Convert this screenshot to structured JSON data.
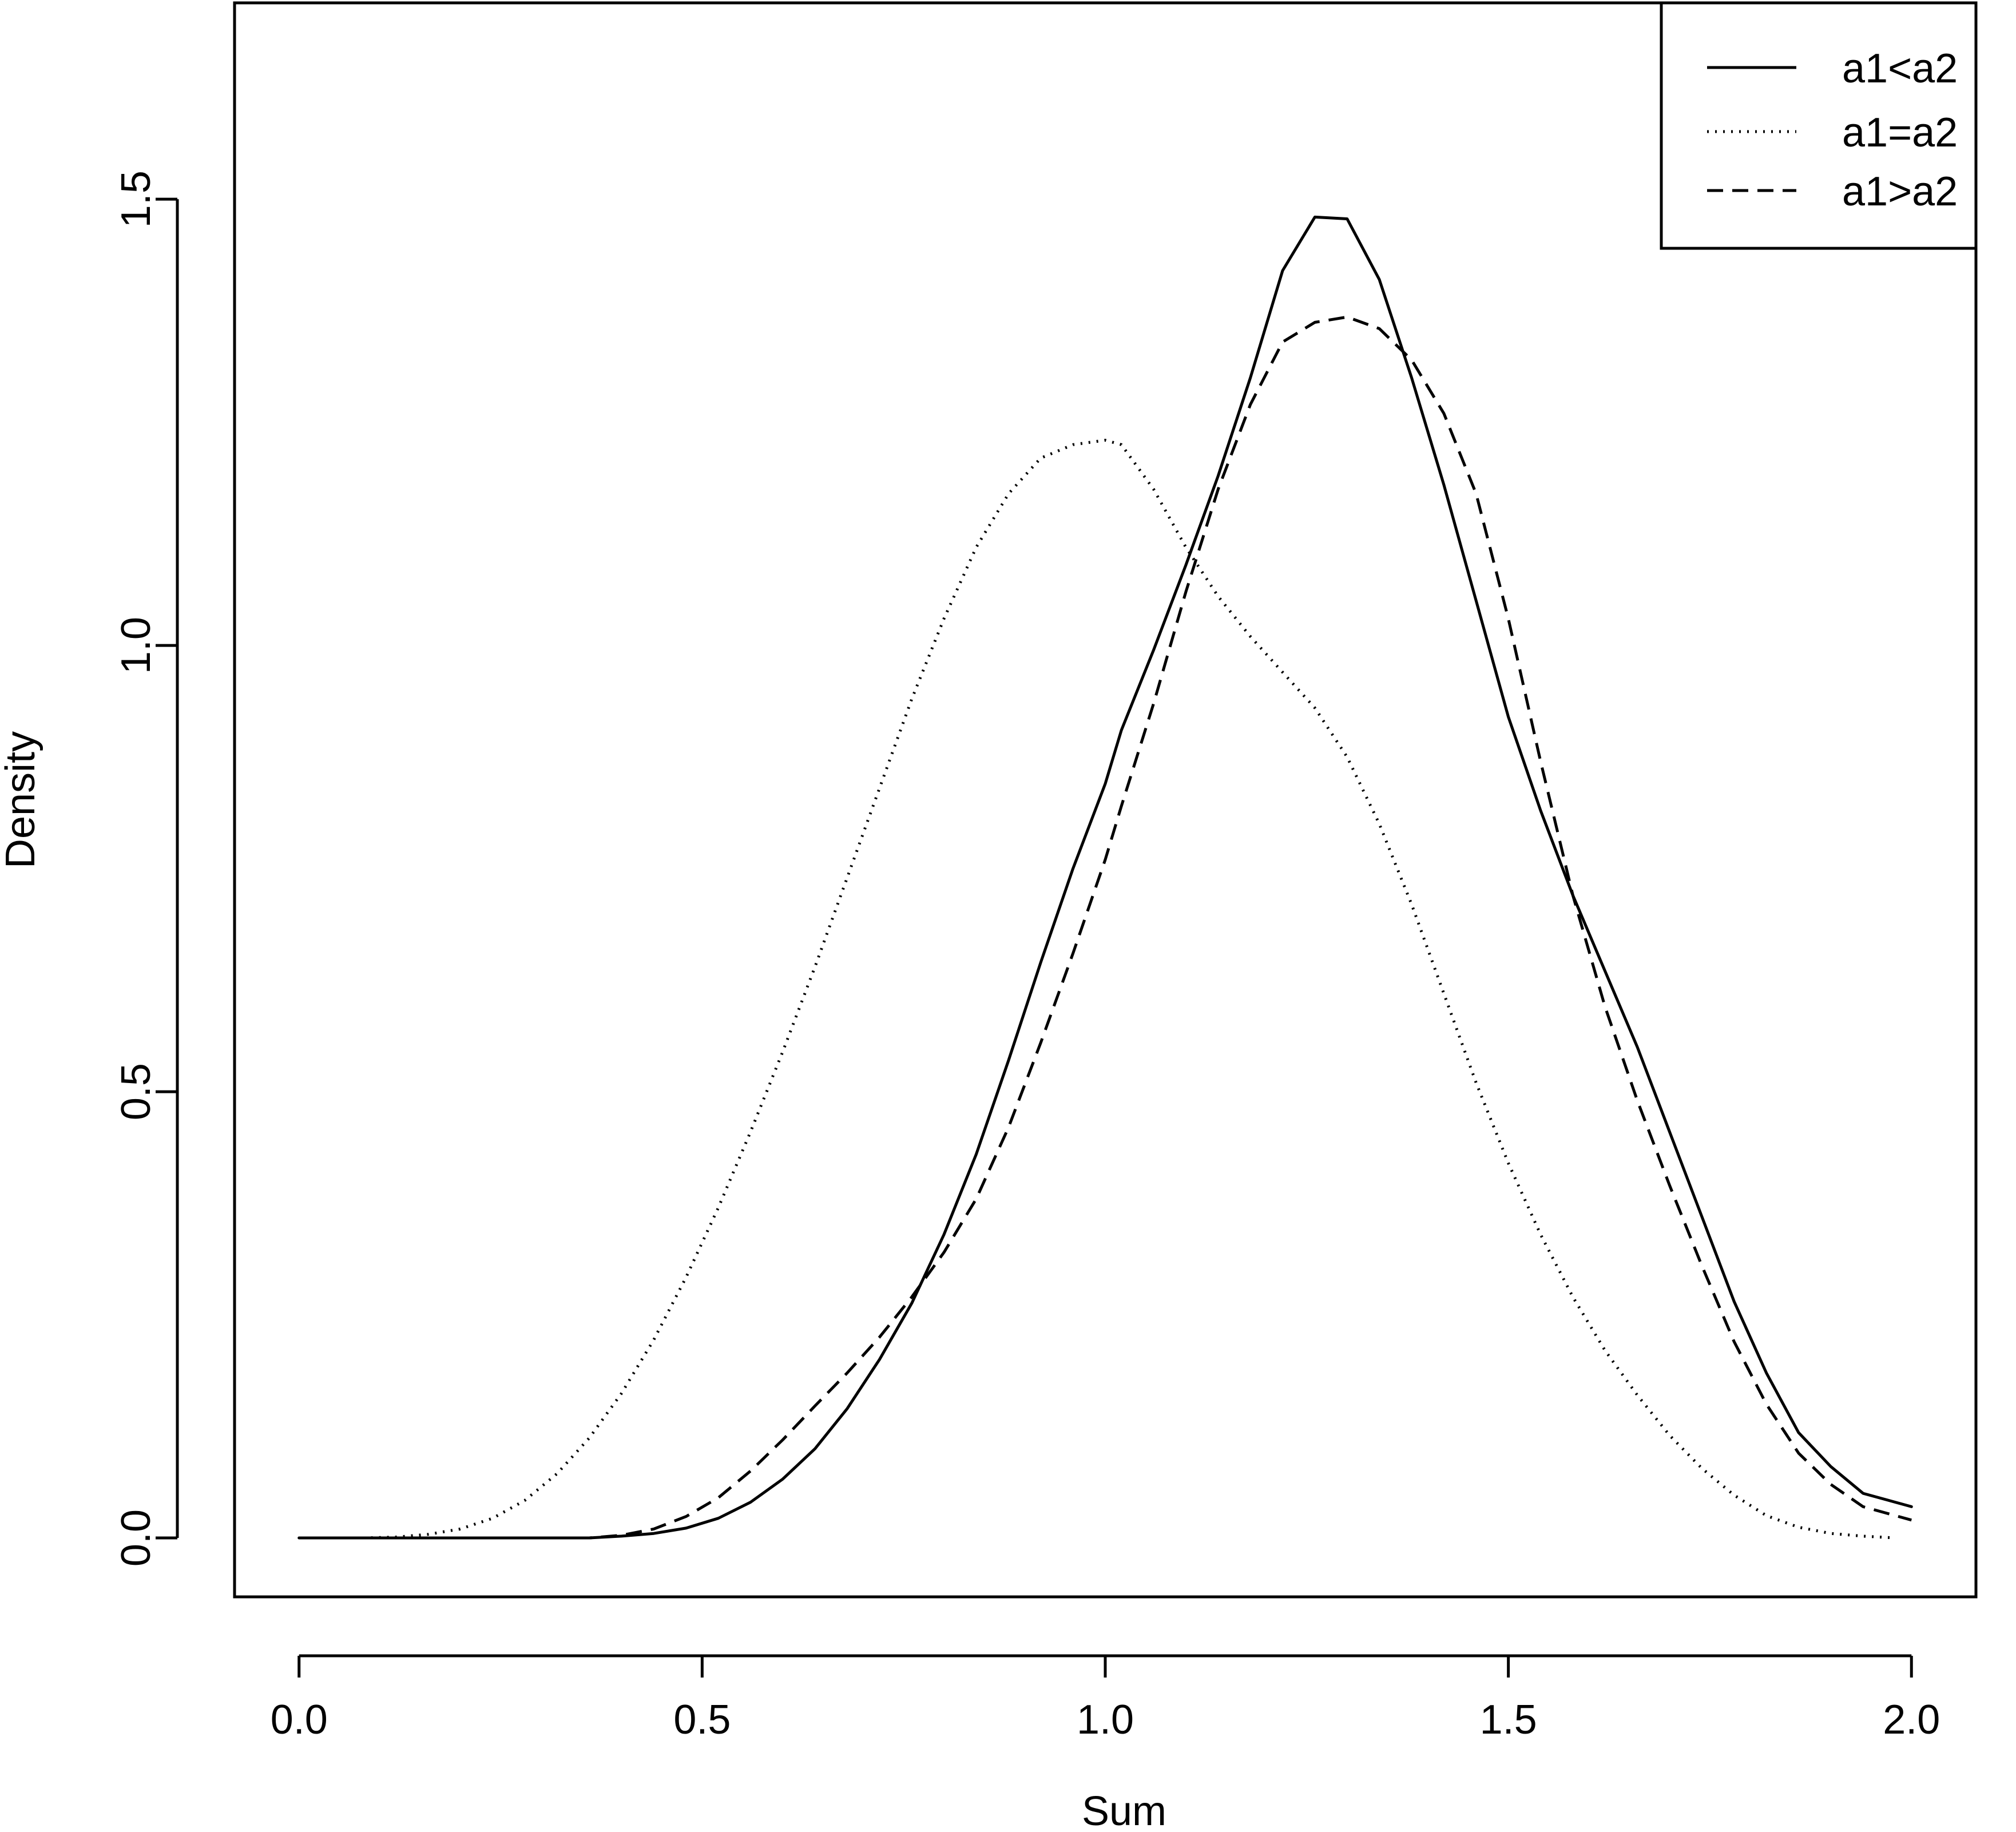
{
  "chart_data": {
    "type": "line",
    "title": "",
    "xlabel": "Sum",
    "ylabel": "Density",
    "xlim": [
      -0.08,
      2.08
    ],
    "ylim": [
      -0.066,
      1.72
    ],
    "xticks": [
      0.0,
      0.5,
      1.0,
      1.5,
      2.0
    ],
    "xtick_labels": [
      "0.0",
      "0.5",
      "1.0",
      "1.5",
      "2.0"
    ],
    "yticks": [
      0.0,
      0.5,
      1.0,
      1.5
    ],
    "ytick_labels": [
      "0.0",
      "0.5",
      "1.0",
      "1.5"
    ],
    "grid": false,
    "legend_position": "top-right",
    "series": [
      {
        "name": "a1<a2",
        "line_style": "solid",
        "color": "#000000",
        "x": [
          0.0,
          0.04,
          0.08,
          0.12,
          0.16,
          0.2,
          0.24,
          0.28,
          0.32,
          0.36,
          0.4,
          0.44,
          0.48,
          0.52,
          0.56,
          0.6,
          0.64,
          0.68,
          0.72,
          0.76,
          0.8,
          0.84,
          0.88,
          0.92,
          0.96,
          1.0,
          1.02,
          1.06,
          1.1,
          1.14,
          1.18,
          1.22,
          1.26,
          1.3,
          1.34,
          1.38,
          1.42,
          1.46,
          1.5,
          1.54,
          1.58,
          1.62,
          1.66,
          1.7,
          1.74,
          1.78,
          1.82,
          1.86,
          1.9,
          1.94,
          1.98,
          2.0
        ],
        "y": [
          0.0,
          0.0,
          0.0,
          0.0,
          0.0,
          0.0,
          0.0,
          0.0,
          0.0,
          0.0,
          0.002,
          0.005,
          0.011,
          0.022,
          0.04,
          0.066,
          0.1,
          0.145,
          0.2,
          0.263,
          0.34,
          0.43,
          0.535,
          0.645,
          0.75,
          0.845,
          0.905,
          0.995,
          1.09,
          1.19,
          1.3,
          1.42,
          1.48,
          1.478,
          1.41,
          1.3,
          1.18,
          1.05,
          0.92,
          0.815,
          0.72,
          0.635,
          0.55,
          0.455,
          0.36,
          0.265,
          0.185,
          0.118,
          0.08,
          0.05,
          0.04,
          0.035
        ]
      },
      {
        "name": "a1=a2",
        "line_style": "dotted",
        "color": "#000000",
        "x": [
          0.0,
          0.04,
          0.08,
          0.12,
          0.16,
          0.2,
          0.24,
          0.28,
          0.32,
          0.36,
          0.4,
          0.44,
          0.48,
          0.52,
          0.56,
          0.6,
          0.64,
          0.68,
          0.72,
          0.76,
          0.8,
          0.84,
          0.88,
          0.92,
          0.96,
          1.0,
          1.02,
          1.06,
          1.1,
          1.14,
          1.18,
          1.22,
          1.26,
          1.3,
          1.34,
          1.38,
          1.42,
          1.46,
          1.5,
          1.54,
          1.58,
          1.62,
          1.66,
          1.7,
          1.74,
          1.78,
          1.82,
          1.86,
          1.9,
          1.94,
          1.98
        ],
        "y": [
          0.0,
          0.0,
          0.0,
          0.001,
          0.004,
          0.01,
          0.022,
          0.042,
          0.072,
          0.112,
          0.162,
          0.222,
          0.292,
          0.37,
          0.455,
          0.545,
          0.64,
          0.74,
          0.84,
          0.94,
          1.03,
          1.11,
          1.17,
          1.21,
          1.225,
          1.23,
          1.225,
          1.175,
          1.11,
          1.055,
          1.01,
          0.97,
          0.93,
          0.875,
          0.8,
          0.71,
          0.61,
          0.51,
          0.42,
          0.34,
          0.27,
          0.21,
          0.16,
          0.115,
          0.078,
          0.048,
          0.025,
          0.012,
          0.005,
          0.002,
          0.0
        ]
      },
      {
        "name": "a1>a2",
        "line_style": "dashed",
        "color": "#000000",
        "x": [
          0.0,
          0.04,
          0.08,
          0.12,
          0.16,
          0.2,
          0.24,
          0.28,
          0.32,
          0.36,
          0.4,
          0.44,
          0.48,
          0.52,
          0.56,
          0.6,
          0.64,
          0.68,
          0.72,
          0.76,
          0.8,
          0.84,
          0.88,
          0.92,
          0.96,
          1.0,
          1.02,
          1.06,
          1.1,
          1.14,
          1.18,
          1.22,
          1.26,
          1.3,
          1.34,
          1.38,
          1.42,
          1.46,
          1.5,
          1.54,
          1.58,
          1.62,
          1.66,
          1.7,
          1.74,
          1.78,
          1.82,
          1.86,
          1.9,
          1.94,
          1.98,
          2.0
        ],
        "y": [
          0.0,
          0.0,
          0.0,
          0.0,
          0.0,
          0.0,
          0.0,
          0.0,
          0.0,
          0.0,
          0.003,
          0.01,
          0.024,
          0.045,
          0.075,
          0.11,
          0.148,
          0.185,
          0.225,
          0.27,
          0.32,
          0.38,
          0.46,
          0.555,
          0.655,
          0.76,
          0.82,
          0.935,
          1.06,
          1.175,
          1.27,
          1.34,
          1.362,
          1.368,
          1.355,
          1.32,
          1.26,
          1.17,
          1.03,
          0.87,
          0.72,
          0.595,
          0.49,
          0.395,
          0.305,
          0.22,
          0.15,
          0.095,
          0.06,
          0.035,
          0.025,
          0.02
        ]
      }
    ]
  }
}
